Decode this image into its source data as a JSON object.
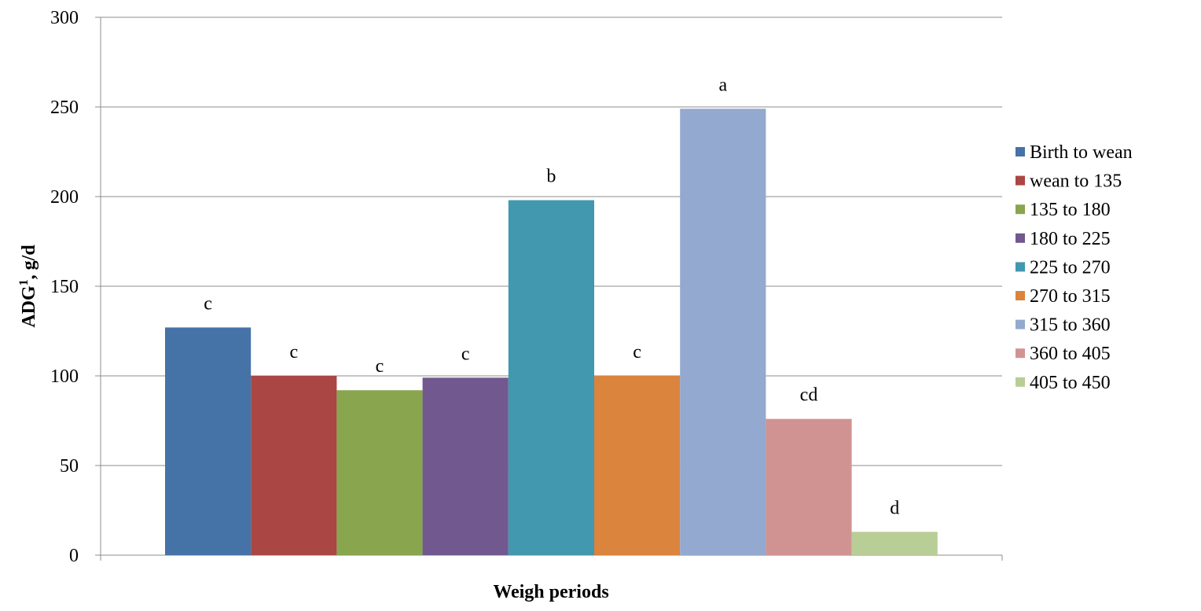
{
  "chart_data": {
    "type": "bar",
    "title": "",
    "xlabel": "Weigh periods",
    "ylabel_main": "ADG",
    "ylabel_superscript": "1",
    "ylabel_rest": ", g/d",
    "ylim": [
      0,
      300
    ],
    "yticks": [
      0,
      50,
      100,
      150,
      200,
      250,
      300
    ],
    "grid": "horizontal",
    "legend_position": "right",
    "series": [
      {
        "name": "Birth to wean",
        "value": 127,
        "label": "c",
        "color": "#4572A7"
      },
      {
        "name": "wean to 135",
        "value": 100,
        "label": "c",
        "color": "#AA4643"
      },
      {
        "name": "135 to 180",
        "value": 92,
        "label": "c",
        "color": "#89A54E"
      },
      {
        "name": "180 to 225",
        "value": 99,
        "label": "c",
        "color": "#71588F"
      },
      {
        "name": "225 to 270",
        "value": 198,
        "label": "b",
        "color": "#4198AF"
      },
      {
        "name": "270 to 315",
        "value": 100,
        "label": "c",
        "color": "#DB843D"
      },
      {
        "name": "315 to 360",
        "value": 249,
        "label": "a",
        "color": "#93A9CF"
      },
      {
        "name": "360 to 405",
        "value": 76,
        "label": "cd",
        "color": "#D19392"
      },
      {
        "name": "405 to 450",
        "value": 13,
        "label": "d",
        "color": "#B9CD96"
      }
    ]
  }
}
